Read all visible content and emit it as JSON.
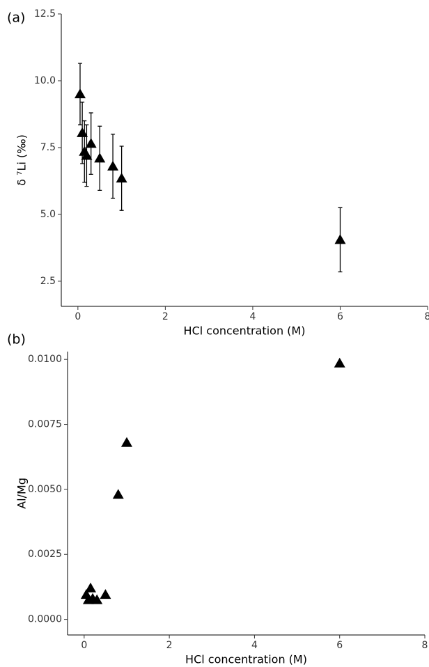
{
  "chart_data": [
    {
      "type": "scatter",
      "panel_label": "(a)",
      "x_label": "HCl concentration (M)",
      "y_label": "δ ⁷Li (‰)",
      "x": [
        0.05,
        0.1,
        0.15,
        0.2,
        0.3,
        0.5,
        0.8,
        1.0,
        6.0
      ],
      "values": [
        9.5,
        8.05,
        7.35,
        7.2,
        7.65,
        7.1,
        6.8,
        6.35,
        4.05
      ],
      "errors": [
        1.15,
        1.15,
        1.15,
        1.15,
        1.15,
        1.2,
        1.2,
        1.2,
        1.2
      ],
      "color": "#000000",
      "xlim": [
        -0.38,
        8
      ],
      "xticks": [
        0,
        2,
        4,
        6,
        8
      ],
      "ylim": [
        1.56,
        12.5
      ],
      "yticks": [
        {
          "value": 2.5,
          "label": "2.5"
        },
        {
          "value": 5,
          "label": "5.0"
        },
        {
          "value": 7.5,
          "label": "7.5"
        },
        {
          "value": 10,
          "label": "10.0"
        },
        {
          "value": 12.5,
          "label": "12.5"
        }
      ]
    },
    {
      "type": "scatter",
      "panel_label": "(b)",
      "x_label": "HCl concentration (M)",
      "y_label": "Al/Mg",
      "x": [
        0.05,
        0.1,
        0.15,
        0.2,
        0.3,
        0.5,
        0.8,
        1.0,
        6.0
      ],
      "values": [
        0.00095,
        0.00075,
        0.0012,
        0.0008,
        0.00075,
        0.00095,
        0.0048,
        0.0068,
        0.00985
      ],
      "color": "#000000",
      "xlim": [
        -0.39,
        8
      ],
      "xticks": [
        0,
        2,
        4,
        6,
        8
      ],
      "ylim": [
        -0.0006,
        0.0103
      ],
      "yticks": [
        {
          "value": 0,
          "label": "0.0000"
        },
        {
          "value": 0.0025,
          "label": "0.0025"
        },
        {
          "value": 0.005,
          "label": "0.0050"
        },
        {
          "value": 0.0075,
          "label": "0.0075"
        },
        {
          "value": 0.01,
          "label": "0.0100"
        }
      ]
    }
  ]
}
